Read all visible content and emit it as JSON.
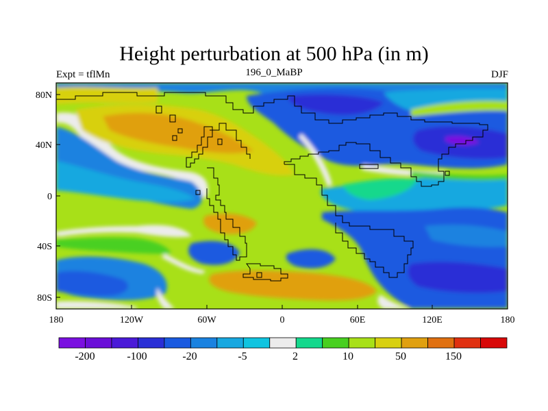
{
  "title": "Height perturbation at 500 hPa (in m)",
  "subtitle_left": "Expt = tflMn",
  "subtitle_center": "196_0_MaBP",
  "subtitle_right": "DJF",
  "lat_ticks": [
    "80N",
    "40N",
    "0",
    "40S",
    "80S"
  ],
  "lon_ticks": [
    "180",
    "120W",
    "60W",
    "0",
    "60E",
    "120E",
    "180"
  ],
  "colorbar": {
    "colors": [
      "#7a10e0",
      "#6a0fd8",
      "#4a1ad8",
      "#2a2fd6",
      "#1a5ae0",
      "#1a82e0",
      "#18a8e0",
      "#10c4e0",
      "#ececec",
      "#14d88c",
      "#48d020",
      "#a8e018",
      "#d8d010",
      "#e0a010",
      "#e07010",
      "#e03010",
      "#d80808"
    ],
    "labels": [
      "-200",
      "-100",
      "-20",
      "-5",
      "2",
      "10",
      "50",
      "150"
    ]
  },
  "colors": {
    "deep_blue": "#2a2fd6",
    "blue": "#1a5ae0",
    "mid_blue": "#1a82e0",
    "cyan": "#18a8e0",
    "light_cyan": "#10c4e0",
    "white": "#ececec",
    "teal_green": "#14d88c",
    "green": "#48d020",
    "yellow_green": "#a8e018",
    "yellow": "#d8d010",
    "orange": "#e0a010",
    "dark_orange": "#e07010",
    "purple": "#6a0fd8"
  }
}
